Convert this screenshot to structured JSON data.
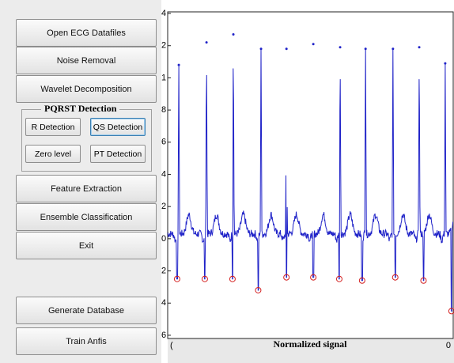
{
  "buttons": [
    "Open ECG Datafiles",
    "Noise Removal",
    "Wavelet Decomposition",
    "Feature Extraction",
    "Ensemble Classification",
    "Exit",
    "Generate Database",
    "Train Anfis"
  ],
  "panel": {
    "title": "PQRST Detection",
    "buttons": [
      "R Detection",
      "QS Detection",
      "Zero level",
      "PT Detection"
    ]
  },
  "chart_data": {
    "type": "line",
    "xlabel": "Normalized signal",
    "xlim": [
      0,
      1000
    ],
    "xticks": [
      {
        "value": 0,
        "label": "("
      },
      {
        "value": 1000,
        "label": "0"
      }
    ],
    "ylim": [
      -0.62,
      1.41
    ],
    "yticks": [
      {
        "value": 1.4,
        "label": "4"
      },
      {
        "value": 1.2,
        "label": "2"
      },
      {
        "value": 1.0,
        "label": "1"
      },
      {
        "value": 0.8,
        "label": "8"
      },
      {
        "value": 0.6,
        "label": "6"
      },
      {
        "value": 0.4,
        "label": "4"
      },
      {
        "value": 0.2,
        "label": "2"
      },
      0,
      {
        "value": -0.2,
        "label": "2"
      },
      {
        "value": -0.4,
        "label": "4"
      },
      {
        "value": -0.6,
        "label": "6"
      }
    ],
    "color": "#1f22c8",
    "r_peaks": {
      "x": [
        39,
        136,
        230,
        327,
        416,
        510,
        604,
        693,
        789,
        881,
        972
      ],
      "values": [
        1.08,
        1.22,
        1.27,
        1.18,
        1.18,
        1.21,
        1.19,
        1.18,
        1.18,
        1.19,
        1.09
      ]
    },
    "s_points": {
      "color": "#d42020",
      "x": [
        33,
        130,
        227,
        317,
        416,
        510,
        601,
        681,
        797,
        896,
        994
      ],
      "values": [
        -0.25,
        -0.25,
        -0.25,
        -0.32,
        -0.24,
        -0.24,
        -0.25,
        -0.26,
        -0.24,
        -0.26,
        -0.45
      ]
    }
  }
}
